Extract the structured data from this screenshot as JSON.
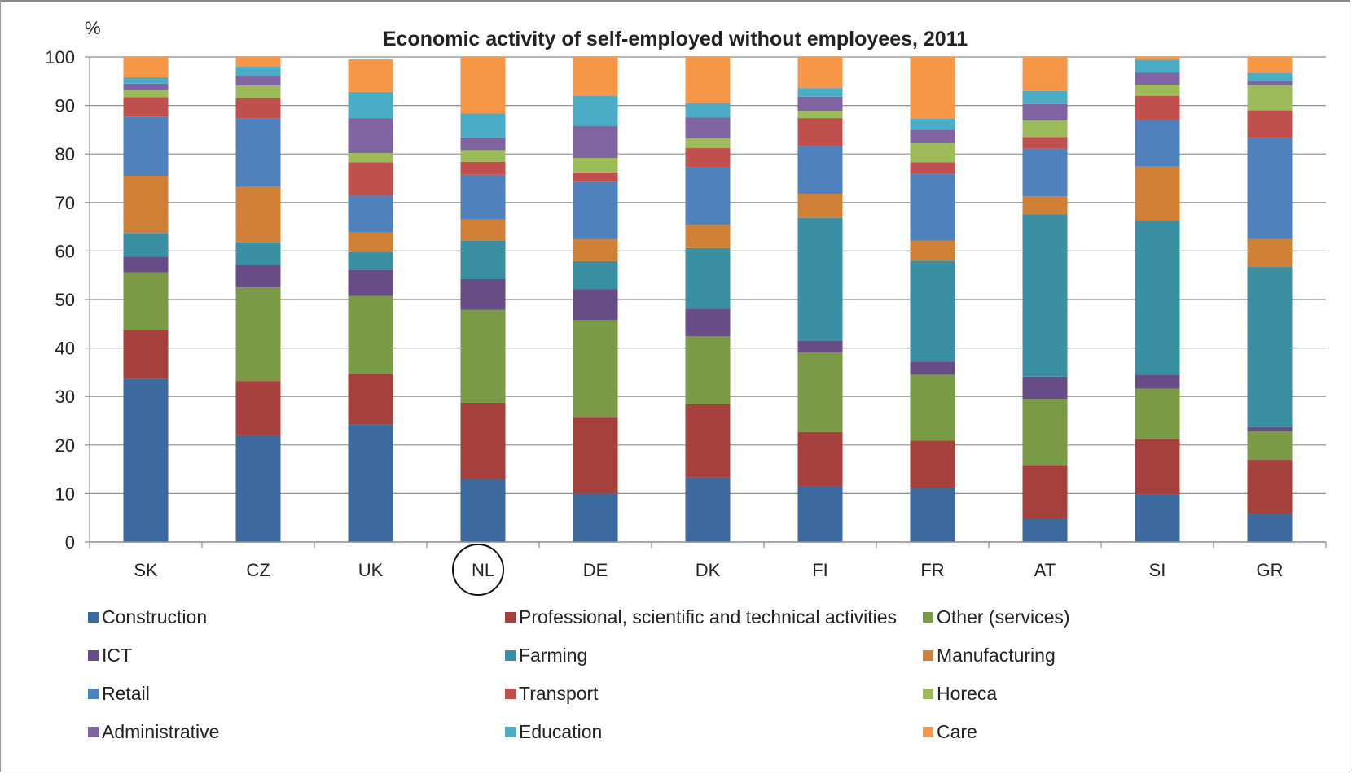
{
  "chart_data": {
    "type": "bar",
    "stacked": true,
    "title": "Economic activity of self-employed without employees, 2011",
    "ylabel": "%",
    "xlabel": "",
    "ylim": [
      0,
      100
    ],
    "yticks": [
      0,
      10,
      20,
      30,
      40,
      50,
      60,
      70,
      80,
      90,
      100
    ],
    "grid": "horizontal",
    "legend_position": "bottom",
    "categories": [
      "SK",
      "CZ",
      "UK",
      "NL",
      "DE",
      "DK",
      "FI",
      "FR",
      "AT",
      "SI",
      "GR"
    ],
    "highlighted_category": "NL",
    "series": [
      {
        "name": "Construction",
        "color": "#3d6a9e",
        "values": [
          33.7,
          22.0,
          24.2,
          13.0,
          10.0,
          13.3,
          11.5,
          11.2,
          4.7,
          9.8,
          5.8
        ]
      },
      {
        "name": "Professional, scientific and technical activities",
        "color": "#a6403d",
        "values": [
          10.0,
          11.2,
          10.5,
          15.7,
          15.8,
          15.1,
          11.2,
          9.7,
          11.2,
          11.4,
          11.2
        ]
      },
      {
        "name": "Other (services)",
        "color": "#7a9a45",
        "values": [
          11.9,
          19.3,
          16.0,
          19.2,
          20.0,
          14.0,
          16.4,
          13.6,
          13.6,
          10.4,
          5.8
        ]
      },
      {
        "name": "ICT",
        "color": "#684c86",
        "values": [
          3.2,
          4.7,
          5.4,
          6.3,
          6.3,
          5.7,
          2.4,
          2.7,
          4.6,
          2.9,
          0.9
        ]
      },
      {
        "name": "Farming",
        "color": "#3b8fa2",
        "values": [
          4.9,
          4.6,
          3.7,
          8.0,
          5.8,
          12.5,
          25.3,
          20.8,
          33.5,
          31.7,
          33.0
        ]
      },
      {
        "name": "Manufacturing",
        "color": "#d08036",
        "values": [
          11.8,
          11.4,
          4.0,
          4.3,
          4.5,
          4.8,
          5.0,
          4.1,
          3.7,
          11.2,
          5.8
        ]
      },
      {
        "name": "Retail",
        "color": "#4f81bd",
        "values": [
          12.2,
          14.1,
          7.6,
          9.2,
          11.8,
          11.8,
          9.8,
          13.8,
          9.8,
          9.6,
          20.9
        ]
      },
      {
        "name": "Transport",
        "color": "#c0504d",
        "values": [
          4.0,
          4.2,
          6.9,
          2.7,
          2.0,
          4.0,
          5.8,
          2.4,
          2.4,
          5.0,
          5.6
        ]
      },
      {
        "name": "Horeca",
        "color": "#9bbb59",
        "values": [
          1.5,
          2.6,
          1.9,
          2.4,
          3.0,
          2.0,
          1.5,
          3.9,
          3.4,
          2.3,
          5.2
        ]
      },
      {
        "name": "Administrative",
        "color": "#8064a2",
        "values": [
          1.3,
          2.1,
          7.2,
          2.6,
          6.6,
          4.3,
          2.9,
          2.8,
          3.4,
          2.5,
          0.9
        ]
      },
      {
        "name": "Education",
        "color": "#4bacc6",
        "values": [
          1.3,
          1.8,
          5.4,
          5.0,
          6.2,
          3.0,
          1.8,
          2.3,
          2.7,
          2.6,
          1.6
        ]
      },
      {
        "name": "Care",
        "color": "#f79646",
        "values": [
          4.2,
          2.0,
          6.7,
          11.6,
          8.0,
          9.5,
          6.4,
          12.7,
          7.0,
          0.6,
          3.3
        ]
      }
    ]
  }
}
